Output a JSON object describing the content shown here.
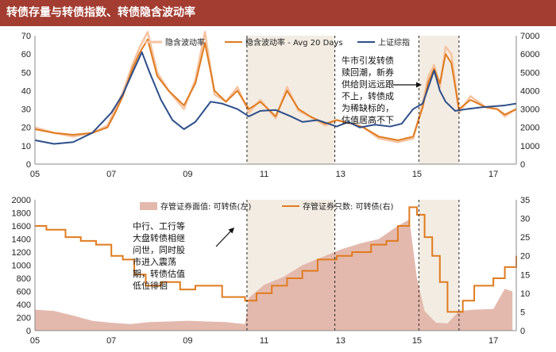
{
  "title": "转债存量与转债指数、转债隐含波动率",
  "chart_data": [
    {
      "type": "line",
      "title": "",
      "x_tick_labels": [
        "05",
        "07",
        "09",
        "11",
        "13",
        "15",
        "17"
      ],
      "x_range": [
        2005.0,
        2017.6
      ],
      "y_left": {
        "ylim": [
          0,
          70
        ],
        "ticks": [
          0,
          10,
          20,
          30,
          40,
          50,
          60,
          70
        ]
      },
      "y_right": {
        "ylim": [
          0,
          7000
        ],
        "ticks": [
          0,
          1000,
          2000,
          3000,
          4000,
          5000,
          6000,
          7000
        ]
      },
      "legend": [
        "隐含波动率",
        "隐含波动率 - Avg 20 Days",
        "上证综指"
      ],
      "shaded_periods": [
        [
          2010.55,
          2012.85
        ],
        [
          2015.05,
          2016.1
        ]
      ],
      "series": [
        {
          "name": "隐含波动率",
          "axis": "left",
          "color": "#f6c4a2",
          "x": [
            2005.0,
            2005.5,
            2006.0,
            2006.5,
            2006.9,
            2007.1,
            2007.3,
            2007.55,
            2007.75,
            2007.95,
            2008.2,
            2008.5,
            2008.9,
            2009.2,
            2009.45,
            2009.7,
            2010.0,
            2010.3,
            2010.6,
            2010.9,
            2011.3,
            2011.6,
            2011.9,
            2012.2,
            2012.6,
            2012.9,
            2013.3,
            2013.6,
            2014.0,
            2014.5,
            2014.9,
            2015.15,
            2015.3,
            2015.45,
            2015.6,
            2015.75,
            2015.9,
            2016.1,
            2016.4,
            2016.8,
            2017.1,
            2017.3,
            2017.6
          ],
          "y": [
            20,
            17,
            15,
            17,
            21,
            30,
            39,
            54,
            64,
            72,
            50,
            40,
            30,
            46,
            72,
            38,
            34,
            42,
            28,
            35,
            25,
            42,
            29,
            26,
            21,
            24,
            22,
            20,
            14,
            12,
            14,
            33,
            48,
            54,
            42,
            64,
            60,
            28,
            37,
            31,
            30,
            26,
            30
          ]
        },
        {
          "name": "隐含波动率 - Avg 20 Days",
          "axis": "left",
          "color": "#e07b1f",
          "x": [
            2005.0,
            2005.5,
            2006.0,
            2006.5,
            2006.9,
            2007.1,
            2007.3,
            2007.55,
            2007.75,
            2007.95,
            2008.2,
            2008.5,
            2008.9,
            2009.2,
            2009.45,
            2009.7,
            2010.0,
            2010.3,
            2010.6,
            2010.9,
            2011.3,
            2011.6,
            2011.9,
            2012.2,
            2012.6,
            2012.9,
            2013.3,
            2013.6,
            2014.0,
            2014.5,
            2014.9,
            2015.15,
            2015.3,
            2015.45,
            2015.6,
            2015.75,
            2015.9,
            2016.1,
            2016.4,
            2016.8,
            2017.1,
            2017.3,
            2017.6
          ],
          "y": [
            19,
            17,
            16,
            17,
            20,
            28,
            37,
            52,
            61,
            68,
            48,
            40,
            32,
            44,
            66,
            40,
            34,
            40,
            30,
            34,
            26,
            40,
            30,
            26,
            22,
            24,
            22,
            20,
            15,
            13,
            15,
            31,
            45,
            52,
            44,
            60,
            55,
            30,
            35,
            31,
            30,
            27,
            30
          ]
        },
        {
          "name": "上证综指",
          "axis": "right",
          "color": "#2d4e8a",
          "x": [
            2005.0,
            2005.5,
            2006.0,
            2006.5,
            2007.0,
            2007.3,
            2007.6,
            2007.8,
            2008.0,
            2008.3,
            2008.6,
            2008.9,
            2009.2,
            2009.6,
            2009.9,
            2010.3,
            2010.6,
            2010.9,
            2011.3,
            2011.7,
            2012.0,
            2012.4,
            2012.9,
            2013.2,
            2013.5,
            2013.9,
            2014.3,
            2014.6,
            2014.9,
            2015.15,
            2015.3,
            2015.45,
            2015.6,
            2015.75,
            2016.0,
            2016.3,
            2016.7,
            2017.0,
            2017.3,
            2017.6
          ],
          "y": [
            1300,
            1100,
            1200,
            1700,
            2800,
            3800,
            5200,
            6100,
            5000,
            3500,
            2400,
            1900,
            2300,
            3400,
            3300,
            3000,
            2600,
            2900,
            2950,
            2600,
            2300,
            2400,
            2050,
            2300,
            2000,
            2150,
            2050,
            2200,
            3000,
            3300,
            4200,
            5100,
            4000,
            3400,
            2900,
            3000,
            3100,
            3150,
            3200,
            3300
          ]
        }
      ]
    },
    {
      "type": "bar",
      "title": "",
      "x_tick_labels": [
        "05",
        "07",
        "09",
        "11",
        "13",
        "15",
        "17"
      ],
      "x_range": [
        2005.0,
        2017.6
      ],
      "y_left": {
        "ylim": [
          0,
          2000
        ],
        "ticks": [
          0,
          200,
          400,
          600,
          800,
          1000,
          1200,
          1400,
          1600,
          1800,
          2000
        ]
      },
      "y_right": {
        "ylim": [
          0,
          35
        ],
        "ticks": [
          0,
          5,
          10,
          15,
          20,
          25,
          30,
          35
        ]
      },
      "legend": [
        "存管证券面值: 可转债(左)",
        "存管证券只数: 可转债(右)"
      ],
      "shaded_periods": [
        [
          2010.55,
          2012.85
        ],
        [
          2015.05,
          2016.1
        ]
      ],
      "series": [
        {
          "name": "存管证券面值: 可转债(左)",
          "axis": "left",
          "type": "area",
          "color": "#e4b9ad",
          "x": [
            2005.0,
            2005.5,
            2006.0,
            2006.5,
            2007.0,
            2007.5,
            2008.0,
            2008.5,
            2009.0,
            2009.5,
            2010.0,
            2010.3,
            2010.5,
            2010.6,
            2011.0,
            2011.5,
            2012.0,
            2012.5,
            2013.0,
            2013.5,
            2014.0,
            2014.5,
            2014.8,
            2015.0,
            2015.2,
            2015.5,
            2015.8,
            2016.1,
            2016.5,
            2017.0,
            2017.3,
            2017.5
          ],
          "y": [
            320,
            300,
            230,
            150,
            120,
            100,
            130,
            140,
            150,
            140,
            130,
            110,
            100,
            500,
            700,
            820,
            1000,
            1120,
            1240,
            1330,
            1400,
            1600,
            1700,
            800,
            300,
            120,
            110,
            300,
            320,
            330,
            640,
            600
          ]
        },
        {
          "name": "存管证券只数: 可转债(右)",
          "axis": "right",
          "type": "step",
          "color": "#e07b1f",
          "x": [
            2005.0,
            2005.3,
            2005.8,
            2006.2,
            2006.6,
            2007.0,
            2007.3,
            2007.6,
            2007.9,
            2008.3,
            2008.8,
            2009.2,
            2009.5,
            2009.9,
            2010.2,
            2010.5,
            2010.8,
            2011.2,
            2011.6,
            2012.0,
            2012.4,
            2012.9,
            2013.3,
            2013.8,
            2014.2,
            2014.5,
            2014.8,
            2015.0,
            2015.2,
            2015.4,
            2015.6,
            2015.8,
            2016.0,
            2016.2,
            2016.5,
            2017.0,
            2017.3,
            2017.6
          ],
          "y": [
            28,
            27,
            25,
            24,
            23,
            20,
            19,
            15,
            12,
            13,
            11,
            12,
            12,
            9,
            9,
            8,
            10,
            12,
            14,
            16,
            19,
            20,
            21,
            23,
            24,
            28,
            33,
            31,
            25,
            20,
            13,
            5,
            5,
            8,
            12,
            14,
            17,
            20
          ]
        }
      ]
    }
  ],
  "annotations": [
    {
      "id": "top",
      "lines": [
        "牛市引发转债",
        "赎回潮，新券",
        "供给则远远跟",
        "不上，转债成",
        "为稀缺标的，",
        "估值居高不下"
      ]
    },
    {
      "id": "bottom",
      "lines": [
        "中行、工行等",
        "大盘转债相继",
        "问世，同时股",
        "市进入震荡",
        "期，转债估值",
        "低位徘徊"
      ]
    }
  ]
}
